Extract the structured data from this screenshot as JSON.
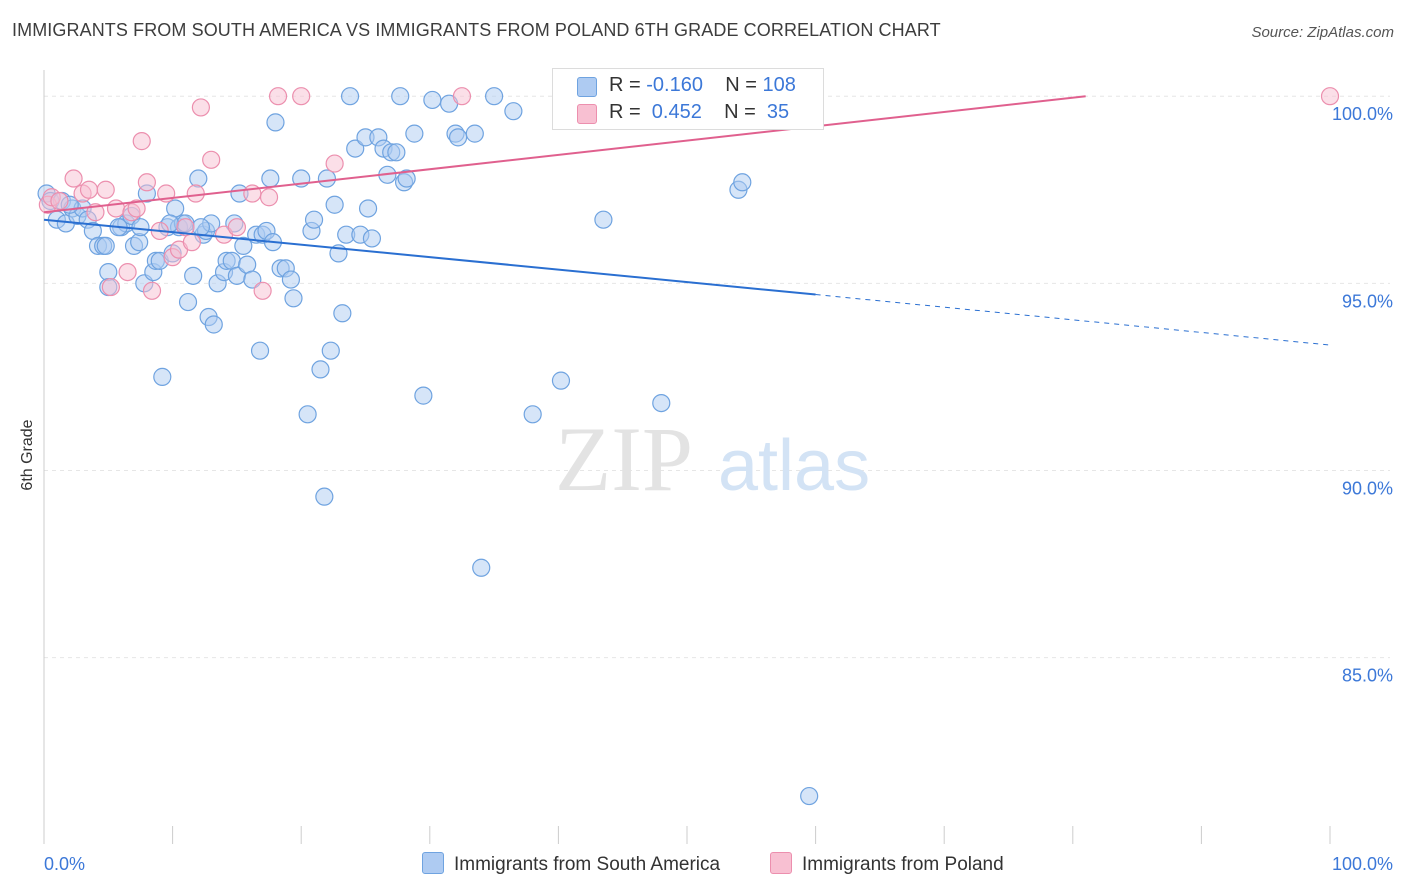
{
  "header": {
    "title": "IMMIGRANTS FROM SOUTH AMERICA VS IMMIGRANTS FROM POLAND 6TH GRADE CORRELATION CHART",
    "source": "Source: ZipAtlas.com"
  },
  "watermark": {
    "zip": "ZIP",
    "atlas": "atlas"
  },
  "legend": {
    "rows": [
      {
        "r_label": "R =",
        "r_value": "-0.160",
        "n_label": "N =",
        "n_value": "108",
        "color": "#a8c8f0"
      },
      {
        "r_label": "R =",
        "r_value": " 0.452",
        "n_label": "N =",
        "n_value": " 35",
        "color": "#f6b8c8"
      }
    ]
  },
  "chart_data": {
    "type": "scatter",
    "title": "IMMIGRANTS FROM SOUTH AMERICA VS IMMIGRANTS FROM POLAND 6TH GRADE CORRELATION CHART",
    "xlabel": "",
    "ylabel": "6th Grade",
    "xlim": [
      0,
      100
    ],
    "ylim": [
      80.5,
      100.7
    ],
    "x_tick_labels": [
      "0.0%",
      "100.0%"
    ],
    "y_ticks": [
      85,
      90,
      95,
      100
    ],
    "y_tick_labels": [
      "85.0%",
      "90.0%",
      "95.0%",
      "100.0%"
    ],
    "grid": true,
    "legend_position": "bottom",
    "series": [
      {
        "name": "Immigrants from South America",
        "color": "#6fa3e0",
        "fill": "#aecbf2",
        "trend": {
          "x0": 0,
          "y0": 96.7,
          "x1": 60,
          "y1": 94.7,
          "dash_to_x": 100,
          "dash_to_y": 93.35,
          "color": "#2a6fd1"
        },
        "points": [
          [
            0.2,
            97.4
          ],
          [
            0.5,
            97.2
          ],
          [
            1.0,
            96.7
          ],
          [
            1.4,
            97.2
          ],
          [
            1.7,
            96.6
          ],
          [
            2.2,
            97.0
          ],
          [
            2.6,
            96.8
          ],
          [
            3.0,
            97.0
          ],
          [
            3.4,
            96.7
          ],
          [
            3.8,
            96.4
          ],
          [
            4.2,
            96.0
          ],
          [
            4.6,
            96.0
          ],
          [
            5.0,
            95.3
          ],
          [
            5.0,
            94.9
          ],
          [
            6.0,
            96.5
          ],
          [
            6.4,
            96.6
          ],
          [
            6.8,
            96.8
          ],
          [
            7.0,
            96.0
          ],
          [
            7.4,
            96.1
          ],
          [
            7.5,
            96.5
          ],
          [
            7.8,
            95.0
          ],
          [
            8.0,
            97.4
          ],
          [
            8.5,
            95.3
          ],
          [
            8.7,
            95.6
          ],
          [
            9.0,
            95.6
          ],
          [
            9.2,
            92.5
          ],
          [
            9.6,
            96.5
          ],
          [
            10.0,
            95.8
          ],
          [
            10.2,
            97.0
          ],
          [
            10.5,
            96.5
          ],
          [
            10.8,
            96.6
          ],
          [
            11.0,
            96.6
          ],
          [
            11.2,
            94.5
          ],
          [
            11.6,
            95.2
          ],
          [
            12.0,
            97.8
          ],
          [
            12.4,
            96.3
          ],
          [
            12.6,
            96.4
          ],
          [
            13.0,
            96.6
          ],
          [
            12.8,
            94.1
          ],
          [
            13.2,
            93.9
          ],
          [
            13.5,
            95.0
          ],
          [
            14.0,
            95.3
          ],
          [
            14.2,
            95.6
          ],
          [
            14.6,
            95.6
          ],
          [
            15.0,
            95.2
          ],
          [
            15.2,
            97.4
          ],
          [
            15.5,
            96.0
          ],
          [
            15.8,
            95.5
          ],
          [
            16.2,
            95.1
          ],
          [
            16.5,
            96.3
          ],
          [
            16.8,
            93.2
          ],
          [
            17.0,
            96.3
          ],
          [
            17.3,
            96.4
          ],
          [
            17.6,
            97.8
          ],
          [
            17.8,
            96.1
          ],
          [
            18.0,
            99.3
          ],
          [
            18.4,
            95.4
          ],
          [
            18.8,
            95.4
          ],
          [
            19.2,
            95.1
          ],
          [
            19.4,
            94.6
          ],
          [
            20.0,
            97.8
          ],
          [
            20.5,
            91.5
          ],
          [
            20.8,
            96.4
          ],
          [
            21.0,
            96.7
          ],
          [
            21.5,
            92.7
          ],
          [
            21.8,
            89.3
          ],
          [
            22.0,
            97.8
          ],
          [
            22.3,
            93.2
          ],
          [
            22.6,
            97.1
          ],
          [
            22.9,
            95.8
          ],
          [
            23.2,
            94.2
          ],
          [
            23.5,
            96.3
          ],
          [
            23.8,
            100.0
          ],
          [
            24.2,
            98.6
          ],
          [
            24.6,
            96.3
          ],
          [
            25.0,
            98.9
          ],
          [
            25.2,
            97.0
          ],
          [
            25.5,
            96.2
          ],
          [
            26.0,
            98.9
          ],
          [
            26.4,
            98.6
          ],
          [
            26.7,
            97.9
          ],
          [
            27.0,
            98.5
          ],
          [
            27.4,
            98.5
          ],
          [
            27.7,
            100.0
          ],
          [
            28.0,
            97.7
          ],
          [
            28.2,
            97.8
          ],
          [
            28.8,
            99.0
          ],
          [
            29.5,
            92.0
          ],
          [
            30.2,
            99.9
          ],
          [
            31.5,
            99.8
          ],
          [
            32.0,
            99.0
          ],
          [
            32.2,
            98.9
          ],
          [
            33.5,
            99.0
          ],
          [
            34.0,
            87.4
          ],
          [
            35.0,
            100.0
          ],
          [
            36.5,
            99.6
          ],
          [
            38.0,
            91.5
          ],
          [
            40.2,
            92.4
          ],
          [
            43.5,
            96.7
          ],
          [
            48.0,
            91.8
          ],
          [
            54.0,
            97.5
          ],
          [
            54.3,
            97.7
          ],
          [
            59.5,
            81.3
          ],
          [
            5.8,
            96.5
          ],
          [
            2.0,
            97.1
          ],
          [
            4.8,
            96.0
          ],
          [
            9.8,
            96.6
          ],
          [
            12.2,
            96.5
          ],
          [
            14.8,
            96.6
          ]
        ]
      },
      {
        "name": "Immigrants from Poland",
        "color": "#ec8fae",
        "fill": "#f8c0d2",
        "trend": {
          "x0": 0,
          "y0": 96.9,
          "x1": 81,
          "y1": 100.0,
          "color": "#e0608e"
        },
        "points": [
          [
            0.3,
            97.1
          ],
          [
            0.6,
            97.3
          ],
          [
            1.2,
            97.2
          ],
          [
            2.3,
            97.8
          ],
          [
            3.0,
            97.4
          ],
          [
            3.5,
            97.5
          ],
          [
            4.0,
            96.9
          ],
          [
            4.8,
            97.5
          ],
          [
            5.2,
            94.9
          ],
          [
            5.6,
            97.0
          ],
          [
            6.5,
            95.3
          ],
          [
            6.8,
            96.9
          ],
          [
            7.2,
            97.0
          ],
          [
            7.6,
            98.8
          ],
          [
            8.0,
            97.7
          ],
          [
            8.4,
            94.8
          ],
          [
            9.0,
            96.4
          ],
          [
            9.5,
            97.4
          ],
          [
            10.0,
            95.7
          ],
          [
            10.5,
            95.9
          ],
          [
            11.0,
            96.5
          ],
          [
            11.5,
            96.1
          ],
          [
            11.8,
            97.4
          ],
          [
            12.2,
            99.7
          ],
          [
            13.0,
            98.3
          ],
          [
            14.0,
            96.3
          ],
          [
            15.0,
            96.5
          ],
          [
            16.2,
            97.4
          ],
          [
            17.0,
            94.8
          ],
          [
            17.5,
            97.3
          ],
          [
            18.2,
            100.0
          ],
          [
            20.0,
            100.0
          ],
          [
            22.6,
            98.2
          ],
          [
            32.5,
            100.0
          ],
          [
            100.0,
            100.0
          ]
        ]
      }
    ]
  },
  "bottom_legend": [
    {
      "label": "Immigrants from South America",
      "color": "#aecbf2",
      "border": "#6fa3e0"
    },
    {
      "label": "Immigrants from Poland",
      "color": "#f8c0d2",
      "border": "#ec8fae"
    }
  ]
}
